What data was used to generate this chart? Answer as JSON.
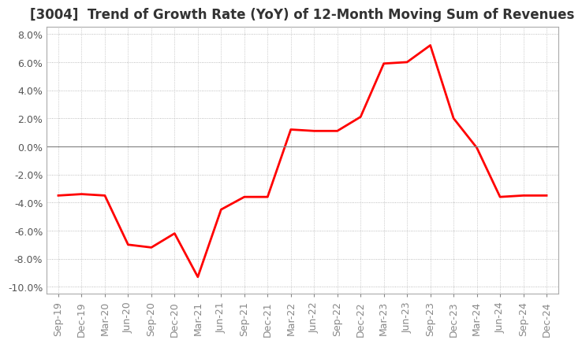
{
  "title": "[3004]  Trend of Growth Rate (YoY) of 12-Month Moving Sum of Revenues",
  "x_labels": [
    "Sep-19",
    "Dec-19",
    "Mar-20",
    "Jun-20",
    "Sep-20",
    "Dec-20",
    "Mar-21",
    "Jun-21",
    "Sep-21",
    "Dec-21",
    "Mar-22",
    "Jun-22",
    "Sep-22",
    "Dec-22",
    "Mar-23",
    "Jun-23",
    "Sep-23",
    "Dec-23",
    "Mar-24",
    "Jun-24",
    "Sep-24",
    "Dec-24"
  ],
  "y_values": [
    -3.5,
    -3.4,
    -3.5,
    -7.0,
    -7.2,
    -6.2,
    -9.3,
    -4.5,
    -3.6,
    -3.6,
    1.2,
    1.1,
    1.1,
    2.1,
    5.9,
    6.0,
    7.2,
    2.0,
    -0.1,
    -3.6,
    -3.5,
    -3.5
  ],
  "ylim": [
    -10.5,
    8.5
  ],
  "yticks": [
    -10.0,
    -8.0,
    -6.0,
    -4.0,
    -2.0,
    0.0,
    2.0,
    4.0,
    6.0,
    8.0
  ],
  "line_color": "#ff0000",
  "grid_color": "#aaaaaa",
  "zero_line_color": "#888888",
  "background_color": "#ffffff",
  "title_fontsize": 12,
  "tick_fontsize": 9
}
